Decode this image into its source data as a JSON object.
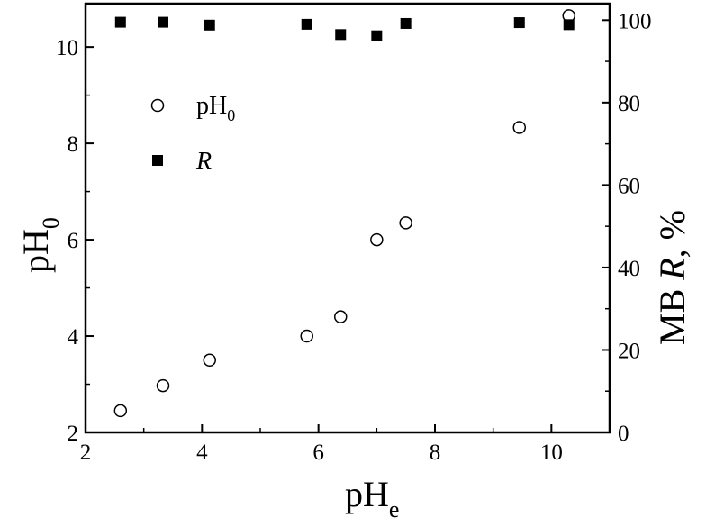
{
  "chart_data": {
    "type": "scatter",
    "x_axis": {
      "label_main": "pH",
      "label_sub": "e",
      "range": [
        2,
        11
      ],
      "ticks": [
        2,
        4,
        6,
        8,
        10
      ],
      "tick_labels": [
        "2",
        "4",
        "6",
        "8",
        "10"
      ]
    },
    "y_axis_left": {
      "label_main": "pH",
      "label_sub": "0",
      "range": [
        2,
        10.9
      ],
      "ticks": [
        2,
        4,
        6,
        8,
        10
      ],
      "tick_labels": [
        "2",
        "4",
        "6",
        "8",
        "10"
      ]
    },
    "y_axis_right": {
      "label_prefix": "MB ",
      "label_italic": "R",
      "label_suffix": ", %",
      "range": [
        0,
        104
      ],
      "ticks": [
        0,
        20,
        40,
        60,
        80,
        100
      ],
      "tick_labels": [
        "0",
        "20",
        "40",
        "60",
        "80",
        "100"
      ]
    },
    "series": [
      {
        "name": "pH",
        "name_sub": "0",
        "axis": "left",
        "marker": "open-circle",
        "x": [
          2.6,
          3.33,
          4.13,
          5.8,
          6.38,
          7.0,
          7.5,
          9.45,
          10.3
        ],
        "y": [
          2.45,
          2.97,
          3.5,
          4.0,
          4.4,
          6.0,
          6.35,
          8.33,
          10.65
        ]
      },
      {
        "name": "R",
        "axis": "right",
        "marker": "filled-square",
        "x": [
          2.6,
          3.33,
          4.13,
          5.8,
          6.38,
          7.0,
          7.5,
          9.45,
          10.3
        ],
        "y": [
          99.5,
          99.5,
          98.8,
          99.0,
          96.5,
          96.2,
          99.2,
          99.4,
          98.9
        ]
      }
    ],
    "legend_position": "upper-left",
    "grid": false
  }
}
